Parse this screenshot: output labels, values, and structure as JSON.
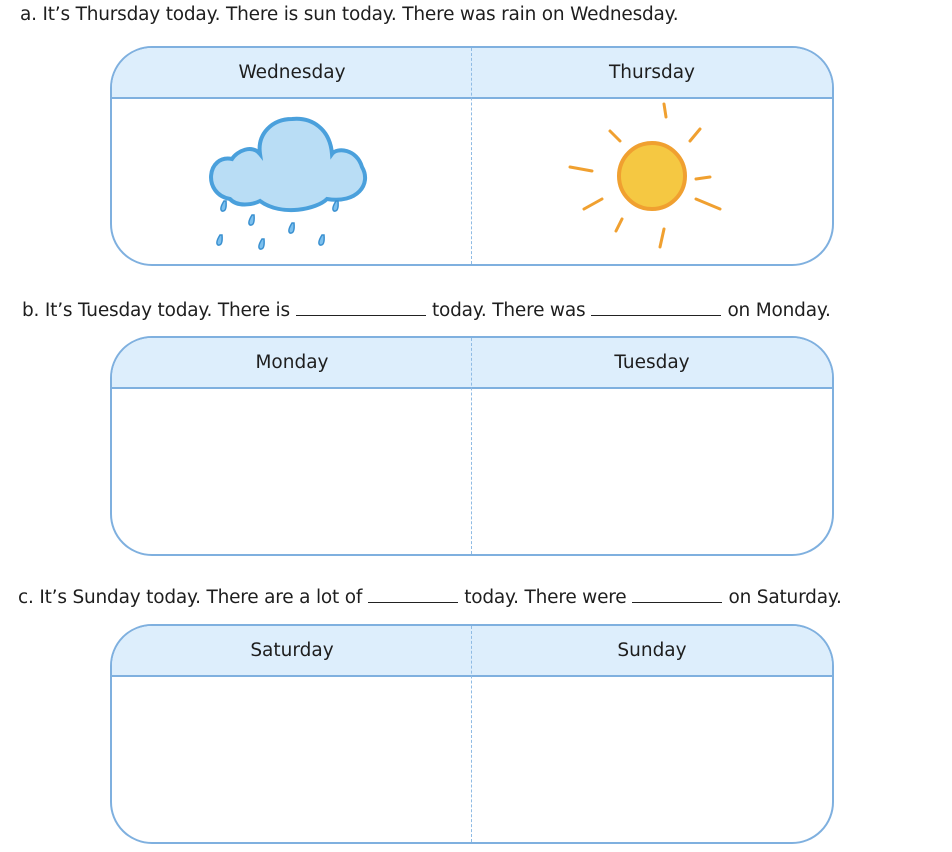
{
  "exercises": [
    {
      "id": "a",
      "parts": [
        "a. It’s Thursday today. There is sun today. There was rain on Wednesday."
      ],
      "columns": [
        "Wednesday",
        "Thursday"
      ],
      "icons": [
        "rain-cloud-icon",
        "sun-icon"
      ]
    },
    {
      "id": "b",
      "parts": [
        "b. It’s Tuesday today. There is",
        "today. There was",
        "on Monday."
      ],
      "columns": [
        "Monday",
        "Tuesday"
      ]
    },
    {
      "id": "c",
      "parts": [
        "c. It’s Sunday today. There are a lot of",
        "today. There were",
        "on Saturday."
      ],
      "columns": [
        "Saturday",
        "Sunday"
      ]
    }
  ],
  "colors": {
    "border": "#7fb0df",
    "header_fill": "#ddeefc",
    "cloud": "#b9ddf5",
    "sun": "#f5c842"
  }
}
